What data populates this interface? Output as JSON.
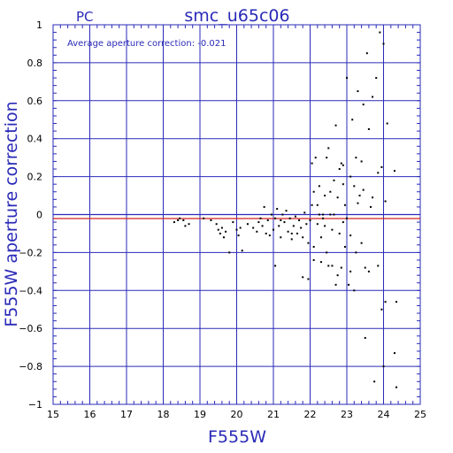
{
  "header": {
    "left_label": "PC",
    "title": "smc_u65c06"
  },
  "annotation": "Average aperture correction: -0.021",
  "chart_data": {
    "type": "scatter",
    "title": "smc_u65c06",
    "xlabel": "F555W",
    "ylabel": "F555W aperture correction",
    "xlim": [
      15,
      25
    ],
    "ylim": [
      -1,
      1
    ],
    "x_ticks": [
      15,
      16,
      17,
      18,
      19,
      20,
      21,
      22,
      23,
      24,
      25
    ],
    "y_ticks": [
      -1,
      -0.8,
      -0.6,
      -0.4,
      -0.2,
      0,
      0.2,
      0.4,
      0.6,
      0.8,
      1
    ],
    "x_tick_labels": [
      "15",
      "16",
      "17",
      "18",
      "19",
      "20",
      "21",
      "22",
      "23",
      "24",
      "25"
    ],
    "y_tick_labels": [
      "−1",
      "−0.8",
      "−0.6",
      "−0.4",
      "−0.2",
      "0",
      "0.2",
      "0.4",
      "0.6",
      "0.8",
      "1"
    ],
    "grid": true,
    "reference_lines": [
      {
        "y": 0,
        "color": "#2a2ab8"
      },
      {
        "y": -0.021,
        "color": "#d42020"
      }
    ],
    "colors": {
      "grid": "#2a2ab8",
      "points": "#000000",
      "mean_line": "#d42020"
    },
    "points": [
      [
        18.3,
        -0.04
      ],
      [
        18.45,
        -0.02
      ],
      [
        18.55,
        -0.03
      ],
      [
        18.6,
        -0.06
      ],
      [
        18.7,
        -0.05
      ],
      [
        18.4,
        -0.03
      ],
      [
        19.1,
        -0.02
      ],
      [
        19.3,
        -0.03
      ],
      [
        19.45,
        -0.05
      ],
      [
        19.5,
        -0.08
      ],
      [
        19.55,
        -0.1
      ],
      [
        19.6,
        -0.07
      ],
      [
        19.65,
        -0.12
      ],
      [
        19.7,
        -0.09
      ],
      [
        19.8,
        -0.2
      ],
      [
        19.9,
        -0.04
      ],
      [
        20.0,
        -0.08
      ],
      [
        20.05,
        -0.11
      ],
      [
        20.1,
        -0.07
      ],
      [
        20.15,
        -0.19
      ],
      [
        20.3,
        -0.05
      ],
      [
        20.45,
        -0.07
      ],
      [
        20.55,
        -0.09
      ],
      [
        20.6,
        -0.04
      ],
      [
        20.65,
        -0.02
      ],
      [
        20.7,
        -0.06
      ],
      [
        20.75,
        0.04
      ],
      [
        20.8,
        -0.1
      ],
      [
        20.85,
        -0.03
      ],
      [
        20.9,
        -0.11
      ],
      [
        20.95,
        0.0
      ],
      [
        21.0,
        -0.08
      ],
      [
        21.05,
        -0.02
      ],
      [
        21.1,
        0.03
      ],
      [
        21.15,
        -0.06
      ],
      [
        21.2,
        -0.12
      ],
      [
        21.25,
        0.0
      ],
      [
        21.3,
        -0.04
      ],
      [
        21.35,
        0.02
      ],
      [
        21.4,
        -0.09
      ],
      [
        21.45,
        -0.02
      ],
      [
        21.5,
        -0.13
      ],
      [
        21.55,
        -0.06
      ],
      [
        21.6,
        -0.01
      ],
      [
        21.65,
        -0.1
      ],
      [
        21.7,
        -0.03
      ],
      [
        21.75,
        -0.07
      ],
      [
        21.8,
        -0.12
      ],
      [
        21.85,
        0.01
      ],
      [
        21.9,
        -0.05
      ],
      [
        21.95,
        -0.15
      ],
      [
        22.0,
        -0.03
      ],
      [
        21.05,
        -0.27
      ],
      [
        21.2,
        -0.03
      ],
      [
        21.5,
        -0.1
      ],
      [
        21.8,
        -0.33
      ],
      [
        21.95,
        -0.34
      ],
      [
        22.05,
        0.27
      ],
      [
        22.1,
        0.12
      ],
      [
        22.1,
        -0.17
      ],
      [
        22.1,
        -0.24
      ],
      [
        22.2,
        0.05
      ],
      [
        22.2,
        -0.05
      ],
      [
        22.25,
        0.15
      ],
      [
        22.3,
        -0.12
      ],
      [
        22.35,
        -0.02
      ],
      [
        22.35,
        0.0
      ],
      [
        22.4,
        0.1
      ],
      [
        22.45,
        -0.2
      ],
      [
        22.5,
        -0.27
      ],
      [
        22.5,
        0.35
      ],
      [
        22.55,
        0.0
      ],
      [
        22.6,
        -0.08
      ],
      [
        22.6,
        -0.27
      ],
      [
        22.65,
        0.18
      ],
      [
        22.7,
        -0.37
      ],
      [
        22.7,
        0.47
      ],
      [
        22.75,
        0.09
      ],
      [
        22.8,
        -0.1
      ],
      [
        22.8,
        0.24
      ],
      [
        22.85,
        -0.28
      ],
      [
        22.85,
        0.27
      ],
      [
        22.9,
        0.16
      ],
      [
        22.9,
        -0.04
      ],
      [
        22.95,
        -0.17
      ],
      [
        23.0,
        0.72
      ],
      [
        23.0,
        -0.02
      ],
      [
        23.05,
        -0.37
      ],
      [
        23.1,
        0.2
      ],
      [
        23.1,
        -0.3
      ],
      [
        23.15,
        0.5
      ],
      [
        23.2,
        -0.4
      ],
      [
        23.25,
        0.3
      ],
      [
        23.25,
        -0.2
      ],
      [
        23.3,
        0.65
      ],
      [
        23.35,
        0.1
      ],
      [
        23.4,
        -0.15
      ],
      [
        23.4,
        0.28
      ],
      [
        23.45,
        0.58
      ],
      [
        23.5,
        -0.65
      ],
      [
        23.55,
        0.85
      ],
      [
        23.6,
        0.45
      ],
      [
        23.6,
        -0.3
      ],
      [
        23.65,
        0.04
      ],
      [
        23.7,
        0.62
      ],
      [
        23.75,
        -0.88
      ],
      [
        23.8,
        0.72
      ],
      [
        23.85,
        0.22
      ],
      [
        23.9,
        0.96
      ],
      [
        23.95,
        -0.5
      ],
      [
        24.0,
        0.9
      ],
      [
        24.0,
        -0.8
      ],
      [
        24.05,
        0.07
      ],
      [
        24.1,
        0.48
      ],
      [
        24.3,
        0.23
      ],
      [
        24.3,
        -0.73
      ],
      [
        24.35,
        -0.91
      ],
      [
        24.35,
        -0.46
      ],
      [
        22.15,
        0.3
      ],
      [
        22.3,
        -0.25
      ],
      [
        22.45,
        0.3
      ],
      [
        22.55,
        0.12
      ],
      [
        22.75,
        -0.32
      ],
      [
        22.95,
        0.05
      ],
      [
        23.1,
        -0.11
      ],
      [
        23.3,
        0.06
      ],
      [
        23.5,
        -0.28
      ],
      [
        23.7,
        0.09
      ],
      [
        23.85,
        -0.27
      ],
      [
        23.95,
        0.25
      ],
      [
        24.05,
        -0.46
      ],
      [
        23.45,
        0.13
      ],
      [
        23.2,
        0.15
      ],
      [
        22.9,
        0.26
      ],
      [
        22.65,
        0.0
      ],
      [
        22.4,
        -0.06
      ],
      [
        22.25,
        0.0
      ],
      [
        22.05,
        0.05
      ]
    ]
  }
}
